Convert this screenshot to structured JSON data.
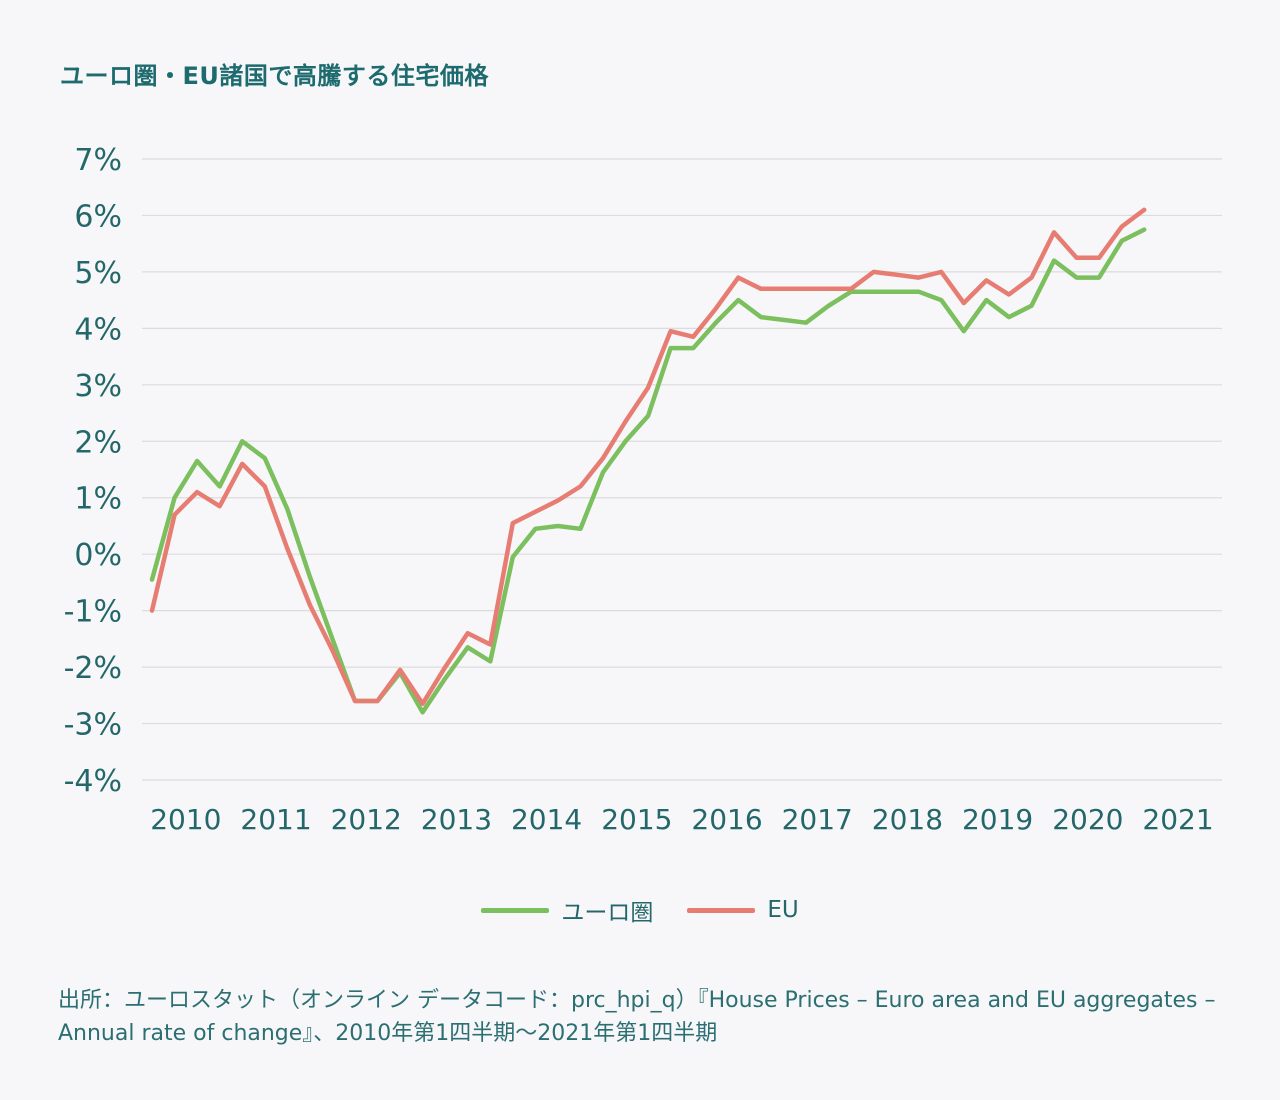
{
  "title": "ユーロ圏・EU諸国で高騰する住宅価格",
  "source_text": "出所：ユーロスタット（オンライン データコード：prc_hpi_q）『House Prices – Euro area and EU aggregates – Annual rate of change』、2010年第1四半期〜2021年第1四半期",
  "legend": [
    "ユーロ圏",
    "EU"
  ],
  "colors": {
    "euro_area": "#7cbf5e",
    "eu": "#e77d72",
    "text": "#24676b",
    "grid": "#dcdcdf"
  },
  "chart_data": {
    "type": "line",
    "title": "ユーロ圏・EU諸国で高騰する住宅価格",
    "xlabel": "",
    "ylabel": "",
    "x_tick_labels": [
      "2010",
      "2011",
      "2012",
      "2013",
      "2014",
      "2015",
      "2016",
      "2017",
      "2018",
      "2019",
      "2020",
      "2021"
    ],
    "y_tick_labels": [
      "7%",
      "6%",
      "5%",
      "4%",
      "3%",
      "2%",
      "1%",
      "0%",
      "-1%",
      "-2%",
      "-3%",
      "-4%"
    ],
    "ylim": [
      -4,
      7
    ],
    "grid": true,
    "legend_position": "bottom",
    "x": [
      "2010Q1",
      "2010Q2",
      "2010Q3",
      "2010Q4",
      "2011Q1",
      "2011Q2",
      "2011Q3",
      "2011Q4",
      "2012Q1",
      "2012Q2",
      "2012Q3",
      "2012Q4",
      "2013Q1",
      "2013Q2",
      "2013Q3",
      "2013Q4",
      "2014Q1",
      "2014Q2",
      "2014Q3",
      "2014Q4",
      "2015Q1",
      "2015Q2",
      "2015Q3",
      "2015Q4",
      "2016Q1",
      "2016Q2",
      "2016Q3",
      "2016Q4",
      "2017Q1",
      "2017Q2",
      "2017Q3",
      "2017Q4",
      "2018Q1",
      "2018Q2",
      "2018Q3",
      "2018Q4",
      "2019Q1",
      "2019Q2",
      "2019Q3",
      "2019Q4",
      "2020Q1",
      "2020Q2",
      "2020Q3",
      "2020Q4",
      "2021Q1"
    ],
    "series": [
      {
        "name": "ユーロ圏",
        "values": [
          -0.45,
          1.0,
          1.65,
          1.2,
          2.0,
          1.7,
          0.8,
          -0.4,
          -1.5,
          -2.6,
          -2.6,
          -2.1,
          -2.8,
          -2.2,
          -1.65,
          -1.9,
          -0.05,
          0.45,
          0.5,
          0.45,
          1.45,
          2.0,
          2.45,
          3.65,
          3.65,
          4.1,
          4.5,
          4.2,
          4.15,
          4.1,
          4.4,
          4.65,
          4.65,
          4.65,
          4.65,
          4.5,
          3.95,
          4.5,
          4.2,
          4.4,
          5.2,
          4.9,
          4.9,
          5.55,
          5.75
        ]
      },
      {
        "name": "EU",
        "values": [
          -1.0,
          0.7,
          1.1,
          0.85,
          1.6,
          1.2,
          0.1,
          -0.9,
          -1.7,
          -2.6,
          -2.6,
          -2.05,
          -2.65,
          -2.0,
          -1.4,
          -1.6,
          0.55,
          0.75,
          0.95,
          1.2,
          1.7,
          2.35,
          2.95,
          3.95,
          3.85,
          4.35,
          4.9,
          4.7,
          4.7,
          4.7,
          4.7,
          4.7,
          5.0,
          4.95,
          4.9,
          5.0,
          4.45,
          4.85,
          4.6,
          4.9,
          5.7,
          5.25,
          5.25,
          5.8,
          6.1
        ]
      }
    ]
  }
}
